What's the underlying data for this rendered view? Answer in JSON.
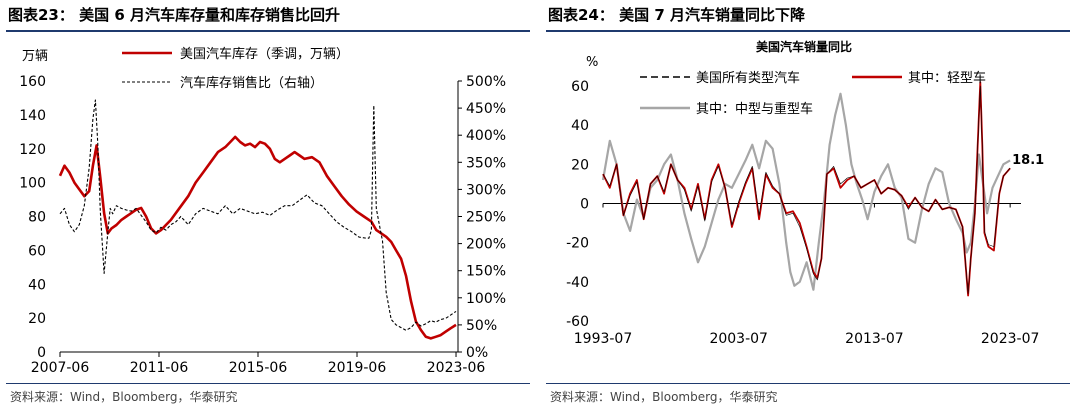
{
  "left_panel": {
    "figure_title": "图表23：  美国 6 月汽车库存量和库存销售比回升",
    "source": "资料来源：Wind，Bloomberg，华泰研究"
  },
  "right_panel": {
    "figure_title": "图表24：  美国 7 月汽车销量同比下降",
    "source": "资料来源：Wind，Bloomberg，华泰研究"
  },
  "colors": {
    "red": "#c00000",
    "black": "#000000",
    "gray": "#a6a6a6",
    "rule": "#1f3a6e"
  },
  "chart_data": [
    {
      "type": "line",
      "title": "",
      "ylabel": "万辆",
      "ylim": [
        0,
        160
      ],
      "yticks": [
        "0",
        "20",
        "40",
        "60",
        "80",
        "100",
        "120",
        "140",
        "160"
      ],
      "y2lim": [
        0,
        500
      ],
      "y2ticks": [
        "0%",
        "50%",
        "100%",
        "150%",
        "200%",
        "250%",
        "300%",
        "350%",
        "400%",
        "450%",
        "500%"
      ],
      "xlim": [
        2007.42,
        2023.5
      ],
      "xticks": [
        {
          "label": "2007-06",
          "x": 2007.42
        },
        {
          "label": "2011-06",
          "x": 2011.42
        },
        {
          "label": "2015-06",
          "x": 2015.42
        },
        {
          "label": "2019-06",
          "x": 2019.42
        },
        {
          "label": "2023-06",
          "x": 2023.42
        }
      ],
      "legend": [
        "美国汽车库存（季调，万辆）",
        "汽车库存销售比（右轴）"
      ],
      "series": [
        {
          "name": "美国汽车库存（季调，万辆）",
          "axis": "left",
          "color": "#c00000",
          "style": "solid",
          "x": [
            2007.42,
            2007.6,
            2007.8,
            2008.0,
            2008.2,
            2008.4,
            2008.6,
            2008.75,
            2008.9,
            2009.05,
            2009.2,
            2009.35,
            2009.5,
            2009.7,
            2009.9,
            2010.1,
            2010.3,
            2010.5,
            2010.7,
            2010.9,
            2011.1,
            2011.3,
            2011.5,
            2011.7,
            2011.9,
            2012.1,
            2012.3,
            2012.6,
            2012.9,
            2013.2,
            2013.5,
            2013.8,
            2014.1,
            2014.3,
            2014.5,
            2014.7,
            2014.9,
            2015.1,
            2015.3,
            2015.5,
            2015.7,
            2015.9,
            2016.1,
            2016.3,
            2016.5,
            2016.7,
            2016.9,
            2017.1,
            2017.3,
            2017.6,
            2017.9,
            2018.2,
            2018.5,
            2018.8,
            2019.1,
            2019.4,
            2019.7,
            2020.0,
            2020.2,
            2020.4,
            2020.6,
            2020.8,
            2021.0,
            2021.2,
            2021.4,
            2021.6,
            2021.8,
            2022.0,
            2022.2,
            2022.4,
            2022.6,
            2022.8,
            2023.0,
            2023.2,
            2023.42
          ],
          "y": [
            104,
            110,
            106,
            100,
            96,
            92,
            95,
            110,
            122,
            103,
            82,
            70,
            73,
            75,
            78,
            80,
            82,
            84,
            85,
            80,
            73,
            70,
            72,
            75,
            78,
            82,
            86,
            92,
            100,
            106,
            112,
            118,
            121,
            124,
            127,
            124,
            122,
            123,
            121,
            124,
            123,
            120,
            114,
            112,
            114,
            116,
            118,
            116,
            114,
            115,
            112,
            104,
            98,
            92,
            87,
            83,
            80,
            77,
            72,
            70,
            68,
            65,
            60,
            55,
            45,
            30,
            18,
            13,
            9,
            8,
            9,
            10,
            12,
            14,
            16
          ]
        },
        {
          "name": "汽车库存销售比（右轴）",
          "axis": "right",
          "color": "#000000",
          "style": "dashed",
          "x": [
            2007.42,
            2007.6,
            2007.8,
            2008.0,
            2008.2,
            2008.4,
            2008.6,
            2008.75,
            2008.85,
            2008.95,
            2009.05,
            2009.2,
            2009.35,
            2009.45,
            2009.55,
            2009.7,
            2009.9,
            2010.1,
            2010.3,
            2010.5,
            2010.7,
            2010.9,
            2011.1,
            2011.3,
            2011.5,
            2011.7,
            2011.9,
            2012.1,
            2012.3,
            2012.6,
            2012.9,
            2013.2,
            2013.5,
            2013.8,
            2014.1,
            2014.4,
            2014.7,
            2015.0,
            2015.3,
            2015.6,
            2015.9,
            2016.2,
            2016.5,
            2016.8,
            2017.1,
            2017.4,
            2017.7,
            2018.0,
            2018.3,
            2018.6,
            2018.9,
            2019.2,
            2019.5,
            2019.8,
            2019.9,
            2020.0,
            2020.1,
            2020.2,
            2020.3,
            2020.45,
            2020.6,
            2020.8,
            2021.0,
            2021.2,
            2021.4,
            2021.6,
            2021.8,
            2022.0,
            2022.2,
            2022.4,
            2022.6,
            2022.8,
            2023.0,
            2023.2,
            2023.42
          ],
          "y": [
            255,
            265,
            235,
            222,
            235,
            270,
            340,
            430,
            465,
            380,
            260,
            145,
            220,
            265,
            255,
            270,
            265,
            262,
            260,
            265,
            252,
            240,
            225,
            220,
            230,
            225,
            235,
            240,
            250,
            235,
            255,
            265,
            260,
            255,
            270,
            255,
            265,
            260,
            255,
            258,
            252,
            262,
            270,
            270,
            280,
            290,
            275,
            270,
            255,
            240,
            230,
            222,
            212,
            210,
            210,
            225,
            455,
            265,
            240,
            205,
            110,
            60,
            50,
            45,
            40,
            45,
            55,
            48,
            52,
            58,
            55,
            60,
            62,
            68,
            75
          ]
        }
      ]
    },
    {
      "type": "line",
      "title": "美国汽车销量同比",
      "ylabel": "%",
      "ylim": [
        -60,
        60
      ],
      "yticks": [
        "-60",
        "-40",
        "-20",
        "0",
        "20",
        "40",
        "60"
      ],
      "xlim": [
        1993.5,
        2024.3
      ],
      "xticks": [
        {
          "label": "1993-07",
          "x": 1993.5
        },
        {
          "label": "2003-07",
          "x": 2003.5
        },
        {
          "label": "2013-07",
          "x": 2013.5
        },
        {
          "label": "2023-07",
          "x": 2023.5
        }
      ],
      "legend": [
        "美国所有类型汽车",
        "其中：轻型车",
        "其中：中型与重型车"
      ],
      "annotation": "18.1",
      "series": [
        {
          "name": "其中：中型与重型车",
          "color": "#a6a6a6",
          "x": [
            1993.5,
            1994,
            1994.5,
            1995,
            1995.5,
            1996,
            1996.5,
            1997,
            1997.5,
            1998,
            1998.5,
            1999,
            1999.5,
            2000,
            2000.5,
            2001,
            2001.5,
            2002,
            2002.5,
            2003,
            2003.5,
            2004,
            2004.5,
            2005,
            2005.5,
            2006,
            2006.5,
            2007,
            2007.3,
            2007.6,
            2008,
            2008.5,
            2009,
            2009.4,
            2009.8,
            2010.2,
            2010.6,
            2011,
            2011.4,
            2011.8,
            2012.2,
            2012.6,
            2013,
            2013.5,
            2014,
            2014.5,
            2015,
            2015.5,
            2016,
            2016.5,
            2017,
            2017.5,
            2018,
            2018.5,
            2019,
            2019.5,
            2020,
            2020.3,
            2020.6,
            2020.9,
            2021.2,
            2021.5,
            2021.8,
            2022.2,
            2022.6,
            2023,
            2023.5
          ],
          "y": [
            12,
            32,
            20,
            -5,
            -14,
            2,
            -7,
            8,
            12,
            20,
            25,
            12,
            -5,
            -18,
            -30,
            -22,
            -10,
            2,
            10,
            8,
            15,
            22,
            30,
            18,
            32,
            28,
            10,
            -20,
            -35,
            -42,
            -40,
            -30,
            -44,
            -20,
            2,
            30,
            45,
            56,
            40,
            20,
            10,
            2,
            -8,
            6,
            14,
            20,
            8,
            3,
            -18,
            -20,
            -3,
            10,
            18,
            16,
            0,
            -8,
            -15,
            -25,
            -20,
            0,
            25,
            10,
            -5,
            8,
            14,
            20,
            22
          ]
        },
        {
          "name": "其中：轻型车",
          "color": "#c00000",
          "x": [
            1993.5,
            1994,
            1994.5,
            1995,
            1995.5,
            1996,
            1996.5,
            1997,
            1997.5,
            1998,
            1998.5,
            1999,
            1999.5,
            2000,
            2000.5,
            2001,
            2001.5,
            2002,
            2002.5,
            2003,
            2003.5,
            2004,
            2004.5,
            2005,
            2005.5,
            2006,
            2006.5,
            2007,
            2007.5,
            2008,
            2008.5,
            2009,
            2009.3,
            2009.6,
            2010,
            2010.5,
            2011,
            2011.5,
            2012,
            2012.5,
            2013,
            2013.5,
            2014,
            2014.5,
            2015,
            2015.5,
            2016,
            2016.5,
            2017,
            2017.5,
            2018,
            2018.5,
            2019,
            2019.5,
            2020,
            2020.2,
            2020.4,
            2020.6,
            2020.9,
            2021.2,
            2021.3,
            2021.45,
            2021.6,
            2021.9,
            2022.3,
            2022.7,
            2023,
            2023.5
          ],
          "y": [
            15,
            8,
            20,
            -6,
            5,
            12,
            -8,
            10,
            14,
            5,
            20,
            12,
            8,
            -3,
            10,
            -8,
            12,
            20,
            8,
            -12,
            0,
            10,
            18,
            -8,
            15,
            8,
            5,
            -5,
            -4,
            -10,
            -22,
            -35,
            -38,
            -28,
            15,
            18,
            8,
            12,
            14,
            8,
            10,
            12,
            5,
            8,
            7,
            4,
            -2,
            3,
            -2,
            -4,
            2,
            -3,
            -2,
            -3,
            -12,
            -30,
            -47,
            -28,
            -5,
            45,
            62,
            30,
            -15,
            -22,
            -24,
            5,
            14,
            18
          ]
        },
        {
          "name": "美国所有类型汽车",
          "color": "#000000",
          "x": [
            1993.5,
            1994,
            1994.5,
            1995,
            1995.5,
            1996,
            1996.5,
            1997,
            1997.5,
            1998,
            1998.5,
            1999,
            1999.5,
            2000,
            2000.5,
            2001,
            2001.5,
            2002,
            2002.5,
            2003,
            2003.5,
            2004,
            2004.5,
            2005,
            2005.5,
            2006,
            2006.5,
            2007,
            2007.5,
            2008,
            2008.5,
            2009,
            2009.3,
            2009.6,
            2010,
            2010.5,
            2011,
            2011.5,
            2012,
            2012.5,
            2013,
            2013.5,
            2014,
            2014.5,
            2015,
            2015.5,
            2016,
            2016.5,
            2017,
            2017.5,
            2018,
            2018.5,
            2019,
            2019.5,
            2020,
            2020.2,
            2020.4,
            2020.6,
            2020.9,
            2021.2,
            2021.3,
            2021.45,
            2021.6,
            2021.9,
            2022.3,
            2022.7,
            2023,
            2023.5
          ],
          "y": [
            15,
            9,
            20,
            -6,
            4,
            11,
            -8,
            10,
            14,
            6,
            20,
            12,
            7,
            -4,
            9,
            -9,
            11,
            19,
            8,
            -11,
            1,
            11,
            19,
            -6,
            16,
            9,
            5,
            -6,
            -5,
            -12,
            -23,
            -36,
            -39,
            -28,
            15,
            19,
            10,
            13,
            14,
            8,
            10,
            12,
            5,
            8,
            7,
            4,
            -3,
            3,
            -2,
            -4,
            2,
            -3,
            -2,
            -3,
            -12,
            -30,
            -46,
            -28,
            -5,
            44,
            60,
            29,
            -14,
            -21,
            -22,
            5,
            14,
            18.1
          ]
        }
      ]
    }
  ]
}
